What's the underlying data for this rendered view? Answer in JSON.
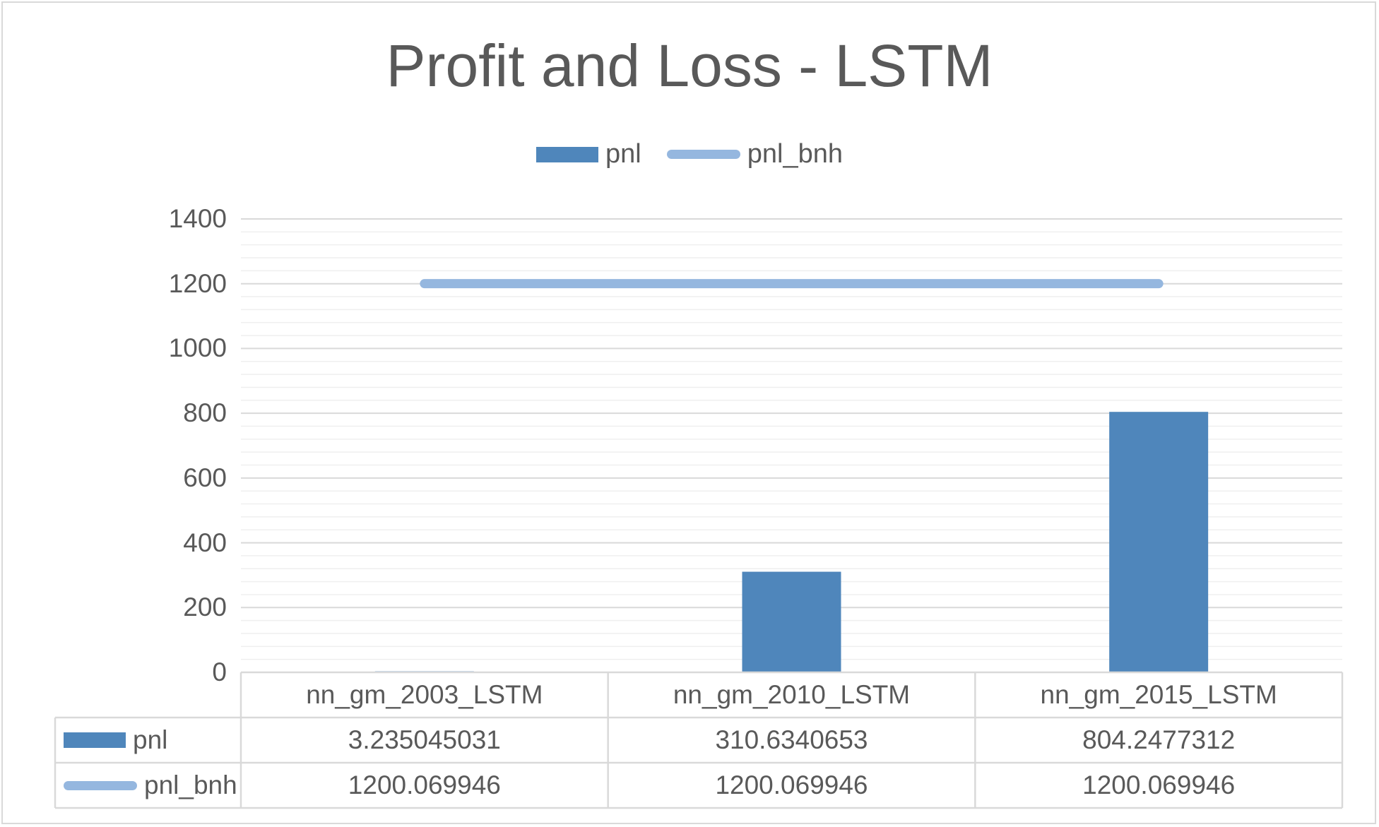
{
  "chart_data": {
    "type": "bar",
    "title": "Profit and Loss - LSTM",
    "categories": [
      "nn_gm_2003_LSTM",
      "nn_gm_2010_LSTM",
      "nn_gm_2015_LSTM"
    ],
    "series": [
      {
        "name": "pnl",
        "kind": "bar",
        "color": "#4f86bb",
        "values": [
          3.235045031,
          310.6340653,
          804.2477312
        ]
      },
      {
        "name": "pnl_bnh",
        "kind": "line",
        "color": "#95b7df",
        "values": [
          1200.069946,
          1200.069946,
          1200.069946
        ]
      }
    ],
    "ylim": [
      0,
      1400
    ],
    "yticks": [
      "0",
      "200",
      "400",
      "600",
      "800",
      "1000",
      "1200",
      "1400"
    ],
    "data_table": {
      "rows": [
        {
          "series": "pnl",
          "cells": [
            "3.235045031",
            "310.6340653",
            "804.2477312"
          ]
        },
        {
          "series": "pnl_bnh",
          "cells": [
            "1200.069946",
            "1200.069946",
            "1200.069946"
          ]
        }
      ]
    },
    "legend": "top",
    "grid": true,
    "xlabel": "",
    "ylabel": ""
  }
}
